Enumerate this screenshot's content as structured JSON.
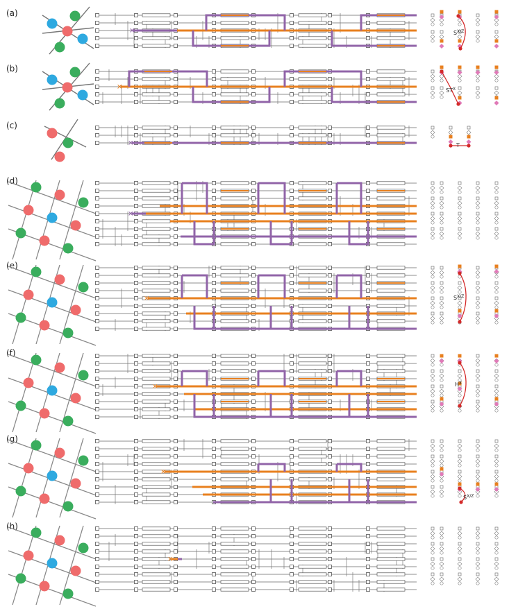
{
  "colors": {
    "orange": "#e8801f",
    "purple": "#9164a8",
    "green": "#3aad5d",
    "red": "#ef6b6b",
    "blue": "#2ea9e0",
    "pink": "#e07ab8",
    "dot_red": "#d42a2a",
    "wire": "#666666",
    "box": "#555555",
    "node_gray": "#9a9a9a"
  },
  "panels": [
    {
      "id": "a",
      "label": "(a)",
      "gate": "SX/Z",
      "gate_main": "S",
      "gate_sup": "X/Z",
      "qubits": 5
    },
    {
      "id": "b",
      "label": "(b)",
      "gate": "STX",
      "gate_main": "ST",
      "gate_sup": "X",
      "qubits": 5
    },
    {
      "id": "c",
      "label": "(c)",
      "gate": "T",
      "gate_main": "T",
      "gate_sup": "",
      "qubits": 3
    },
    {
      "id": "d",
      "label": "(d)",
      "gate": "",
      "gate_main": "",
      "gate_sup": "",
      "qubits": 9
    },
    {
      "id": "e",
      "label": "(e)",
      "gate": "SX/Z",
      "gate_main": "S",
      "gate_sup": "X/Z",
      "qubits": 9
    },
    {
      "id": "f",
      "label": "(f)",
      "gate": "HX",
      "gate_main": "H",
      "gate_sup": "X",
      "qubits": 9
    },
    {
      "id": "g",
      "label": "(g)",
      "gate": "SX/Z",
      "gate_main": "S",
      "gate_sup": "X/Z",
      "qubits": 9
    },
    {
      "id": "h",
      "label": "(h)",
      "gate": "",
      "gate_main": "",
      "gate_sup": "",
      "qubits": 9
    }
  ]
}
